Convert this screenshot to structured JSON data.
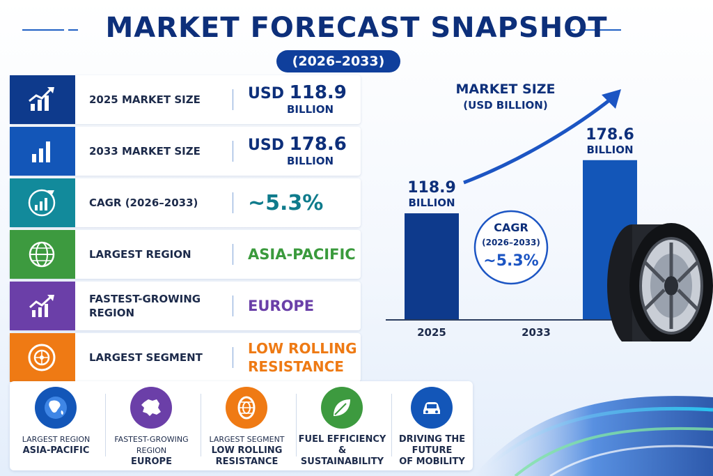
{
  "title": "MARKET FORECAST SNAPSHOT",
  "period": "(2026–2033)",
  "kpis": [
    {
      "label": "2025 MARKET SIZE",
      "prefix": "USD ",
      "number": "118.9",
      "sub": "BILLION",
      "color": "#0e3a8c"
    },
    {
      "label": "2033 MARKET SIZE",
      "prefix": "USD ",
      "number": "178.6",
      "sub": "BILLION",
      "color": "#1356b8"
    },
    {
      "label": "CAGR (2026–2033)",
      "value": "~5.3%",
      "color": "#128a9b"
    },
    {
      "label": "LARGEST REGION",
      "value": "ASIA-PACIFIC",
      "color": "#3d9a3f"
    },
    {
      "label": "FASTEST-GROWING REGION",
      "value": "EUROPE",
      "color": "#6b3fa8"
    },
    {
      "label": "LARGEST SEGMENT",
      "value": "LOW ROLLING RESISTANCE",
      "color": "#ef7a14"
    }
  ],
  "bottom": [
    {
      "line1": "LARGEST REGION",
      "line2": "ASIA-PACIFIC",
      "icon": "globe-asia-icon",
      "color": "#1356b8"
    },
    {
      "line1": "FASTEST-GROWING REGION",
      "line2": "EUROPE",
      "icon": "europe-map-icon",
      "color": "#6b3fa8"
    },
    {
      "line1": "LARGEST SEGMENT",
      "line2": "LOW ROLLING RESISTANCE",
      "icon": "tire-icon",
      "color": "#ef7a14"
    },
    {
      "line1": "FUEL EFFICIENCY",
      "line2": "& SUSTAINABILITY",
      "icon": "leaf-icon",
      "color": "#3d9a3f"
    },
    {
      "line1": "DRIVING THE FUTURE",
      "line2": "OF MOBILITY",
      "icon": "car-icon",
      "color": "#1356b8"
    }
  ],
  "chart_data": {
    "type": "bar",
    "title": "MARKET SIZE",
    "subtitle": "(USD BILLION)",
    "categories": [
      "2025",
      "2033"
    ],
    "values": [
      118.9,
      178.6
    ],
    "value_labels": [
      "118.9",
      "178.6"
    ],
    "value_unit": "BILLION",
    "bar_colors": [
      "#0e3a8c",
      "#1356b8"
    ],
    "annotation": {
      "title": "CAGR",
      "period": "(2026–2033)",
      "value": "~5.3%"
    },
    "grid": false,
    "legend": "none"
  }
}
